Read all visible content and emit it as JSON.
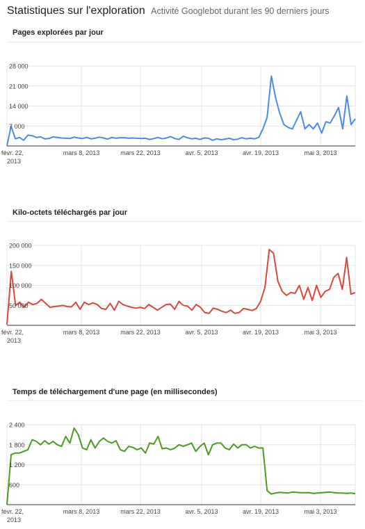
{
  "header": {
    "title": "Statistiques sur l'exploration",
    "subtitle": "Activité Googlebot durant les 90 derniers jours"
  },
  "chart_data": [
    {
      "type": "line",
      "title": "Pages explorées par jour",
      "color": "#4a8bea",
      "ylim": [
        0,
        28000
      ],
      "y_ticks": [
        7000,
        14000,
        21000,
        28000
      ],
      "y_tick_labels": [
        "7 000",
        "14 000",
        "21 000",
        "28 000"
      ],
      "x_ticks": [
        {
          "label": "févr. 22,",
          "label2": "2013"
        },
        {
          "label": "mars 8, 2013"
        },
        {
          "label": "mars 22, 2013"
        },
        {
          "label": "avr. 5, 2013"
        },
        {
          "label": "avr. 19, 2013"
        },
        {
          "label": "mai 3, 2013"
        }
      ],
      "grid": true,
      "values": [
        100,
        7000,
        2500,
        3000,
        2000,
        3800,
        3600,
        3000,
        3200,
        2500,
        2600,
        3200,
        3000,
        2800,
        2700,
        2600,
        3100,
        2800,
        2600,
        3000,
        2500,
        2700,
        3100,
        2800,
        2400,
        3000,
        2700,
        2900,
        2900,
        2700,
        2800,
        2700,
        2600,
        2700,
        2300,
        2600,
        3000,
        2500,
        2800,
        3300,
        2600,
        2300,
        3400,
        2900,
        2500,
        2700,
        2300,
        2800,
        2700,
        2000,
        2500,
        2200,
        2400,
        2700,
        2200,
        2400,
        2900,
        2500,
        2700,
        2500,
        3000,
        6000,
        10000,
        24500,
        17000,
        11500,
        7500,
        6500,
        6000,
        9000,
        12000,
        6000,
        7500,
        6000,
        8000,
        4500,
        8500,
        8000,
        10500,
        13500,
        6000,
        17500,
        7500,
        9500
      ]
    },
    {
      "type": "line",
      "title": "Kilo-octets téléchargés par jour",
      "color": "#d9483b",
      "ylim": [
        0,
        200000
      ],
      "y_ticks": [
        50000,
        100000,
        150000,
        200000
      ],
      "y_tick_labels": [
        "50 000",
        "100 000",
        "150 000",
        "200 000"
      ],
      "x_ticks": [
        {
          "label": "févr. 22,",
          "label2": "2013"
        },
        {
          "label": "mars 8, 2013"
        },
        {
          "label": "mars 22, 2013"
        },
        {
          "label": "avr. 5, 2013"
        },
        {
          "label": "avr. 19, 2013"
        },
        {
          "label": "mai 3, 2013"
        }
      ],
      "grid": true,
      "values": [
        2000,
        135000,
        50000,
        58000,
        45000,
        58000,
        52000,
        55000,
        65000,
        55000,
        45000,
        47000,
        48000,
        50000,
        47000,
        46000,
        58000,
        40000,
        58000,
        52000,
        56000,
        52000,
        42000,
        40000,
        55000,
        38000,
        60000,
        52000,
        48000,
        45000,
        43000,
        45000,
        42000,
        52000,
        45000,
        38000,
        45000,
        52000,
        53000,
        40000,
        60000,
        50000,
        48000,
        38000,
        52000,
        45000,
        32000,
        30000,
        43000,
        40000,
        35000,
        32000,
        38000,
        30000,
        32000,
        42000,
        40000,
        37000,
        42000,
        60000,
        95000,
        190000,
        180000,
        110000,
        85000,
        75000,
        82000,
        80000,
        100000,
        65000,
        95000,
        62000,
        100000,
        70000,
        85000,
        90000,
        120000,
        130000,
        90000,
        170000,
        78000,
        82000
      ]
    },
    {
      "type": "line",
      "title": "Temps de téléchargement d'une page (en millisecondes)",
      "color": "#4d9a1d",
      "ylim": [
        0,
        2400
      ],
      "y_ticks": [
        600,
        1200,
        1800,
        2400
      ],
      "y_tick_labels": [
        "600",
        "1 200",
        "1 800",
        "2 400"
      ],
      "x_ticks": [
        {
          "label": "févr. 22,",
          "label2": "2013"
        },
        {
          "label": "mars 8, 2013"
        },
        {
          "label": "mars 22, 2013"
        },
        {
          "label": "avr. 5, 2013"
        },
        {
          "label": "avr. 19, 2013"
        },
        {
          "label": "mai 3, 2013"
        }
      ],
      "grid": true,
      "values": [
        0,
        1500,
        1550,
        1550,
        1600,
        1650,
        1950,
        1900,
        1800,
        1920,
        1820,
        1900,
        1800,
        1750,
        2050,
        1850,
        2300,
        2100,
        1700,
        1650,
        1950,
        1700,
        1900,
        2000,
        1900,
        1850,
        1920,
        1650,
        1600,
        1750,
        1720,
        1650,
        1700,
        1550,
        1850,
        1820,
        2050,
        1680,
        1700,
        1650,
        1700,
        1800,
        1750,
        1800,
        1850,
        1600,
        1750,
        1850,
        1500,
        1800,
        1850,
        1850,
        1700,
        1650,
        1820,
        1700,
        1800,
        1800,
        1700,
        1750,
        1700,
        1700,
        420,
        320,
        350,
        370,
        360,
        350,
        380,
        370,
        360,
        360,
        360,
        340,
        350,
        360,
        370,
        380,
        360,
        350,
        350,
        340,
        350,
        330
      ]
    }
  ]
}
